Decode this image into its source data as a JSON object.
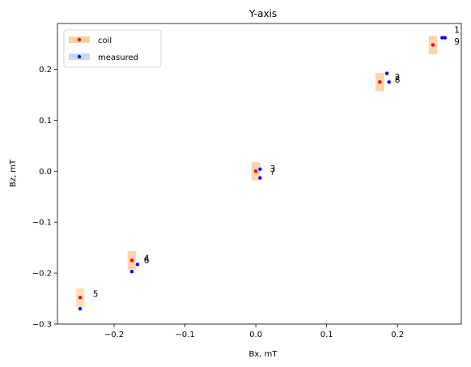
{
  "chart_data": {
    "type": "scatter",
    "title": "Y-axis",
    "xlabel": "Bx, mT",
    "ylabel": "Bz, mT",
    "xlim": [
      -0.28,
      0.29
    ],
    "ylim": [
      -0.3,
      0.29
    ],
    "xticks": [
      -0.2,
      -0.1,
      0.0,
      0.1,
      0.2
    ],
    "xtick_labels": [
      "−0.2",
      "−0.1",
      "0.0",
      "0.1",
      "0.2"
    ],
    "yticks": [
      -0.3,
      -0.2,
      -0.1,
      0.0,
      0.1,
      0.2
    ],
    "ytick_labels": [
      "−0.3",
      "−0.2",
      "−0.1",
      "0.0",
      "0.1",
      "0.2"
    ],
    "grid": false,
    "legend": {
      "placement": "top-left",
      "entries": [
        {
          "name": "coil",
          "color": "#ff0000",
          "patch_color": "#fdd0a2"
        },
        {
          "name": "measured",
          "color": "#0000ff",
          "patch_color": "#c6dbef"
        }
      ]
    },
    "coil_boxes": [
      {
        "x": 0.25,
        "y": 0.248,
        "w": 0.012,
        "h": 0.036,
        "alpha": 0.9
      },
      {
        "x": 0.175,
        "y": 0.175,
        "w": 0.012,
        "h": 0.036,
        "alpha": 0.9
      },
      {
        "x": 0.0,
        "y": 0.0,
        "w": 0.012,
        "h": 0.036,
        "alpha": 0.9
      },
      {
        "x": -0.175,
        "y": -0.175,
        "w": 0.012,
        "h": 0.036,
        "alpha": 0.9
      },
      {
        "x": -0.248,
        "y": -0.248,
        "w": 0.012,
        "h": 0.036,
        "alpha": 0.7
      }
    ],
    "series": [
      {
        "name": "coil",
        "color": "#ff0000",
        "points": [
          {
            "x": 0.25,
            "y": 0.248
          },
          {
            "x": 0.175,
            "y": 0.175
          },
          {
            "x": 0.0,
            "y": 0.0
          },
          {
            "x": -0.175,
            "y": -0.175
          },
          {
            "x": -0.248,
            "y": -0.248
          }
        ]
      },
      {
        "name": "measured",
        "color": "#0000ff",
        "points": [
          {
            "x": 0.263,
            "y": 0.262,
            "label": "1"
          },
          {
            "x": 0.185,
            "y": 0.192,
            "label": "2"
          },
          {
            "x": 0.006,
            "y": 0.004,
            "label": "3"
          },
          {
            "x": -0.175,
            "y": -0.197,
            "label": "4"
          },
          {
            "x": -0.248,
            "y": -0.27,
            "label": "5"
          },
          {
            "x": -0.167,
            "y": -0.183,
            "label": "6"
          },
          {
            "x": 0.006,
            "y": -0.013,
            "label": "7"
          },
          {
            "x": 0.188,
            "y": 0.175,
            "label": "8"
          },
          {
            "x": 0.267,
            "y": 0.262,
            "label": "9"
          }
        ]
      }
    ],
    "point_labels": [
      {
        "text": "1",
        "x": 0.28,
        "y": 0.278
      },
      {
        "text": "9",
        "x": 0.28,
        "y": 0.255
      },
      {
        "text": "2",
        "x": 0.196,
        "y": 0.185
      },
      {
        "text": "8",
        "x": 0.196,
        "y": 0.18
      },
      {
        "text": "3",
        "x": 0.02,
        "y": 0.005
      },
      {
        "text": "7",
        "x": 0.02,
        "y": 0.0
      },
      {
        "text": "4",
        "x": -0.158,
        "y": -0.17
      },
      {
        "text": "6",
        "x": -0.158,
        "y": -0.174
      },
      {
        "text": "5",
        "x": -0.23,
        "y": -0.24
      }
    ]
  }
}
